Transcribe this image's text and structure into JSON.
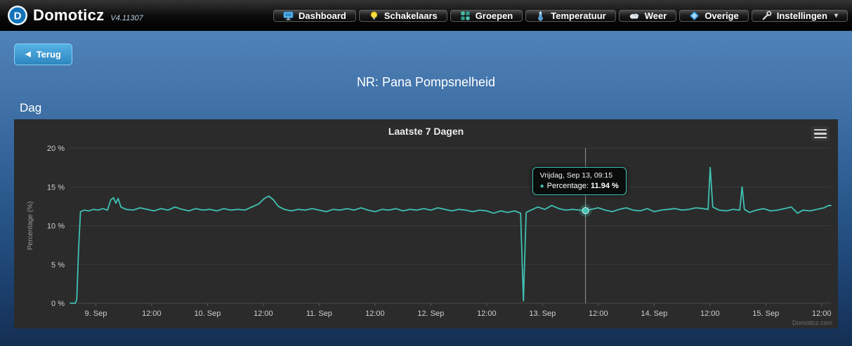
{
  "navbar": {
    "brand": {
      "name": "Domoticz",
      "version": "V4.11307"
    },
    "items": [
      {
        "label": "Dashboard",
        "icon": "dashboard-icon"
      },
      {
        "label": "Schakelaars",
        "icon": "bulb-icon"
      },
      {
        "label": "Groepen",
        "icon": "groups-icon"
      },
      {
        "label": "Temperatuur",
        "icon": "thermometer-icon"
      },
      {
        "label": "Weer",
        "icon": "cloud-icon"
      },
      {
        "label": "Overige",
        "icon": "gem-icon"
      },
      {
        "label": "Instellingen",
        "icon": "wrench-icon",
        "has_dropdown": true
      }
    ]
  },
  "page": {
    "back_button": "Terug",
    "title": "NR: Pana Pompsnelheid",
    "section_label": "Dag"
  },
  "chart_data": {
    "type": "line",
    "title": "Laatste 7 Dagen",
    "ylabel": "Percentage (%)",
    "ylim": [
      0,
      20
    ],
    "xlim": [
      18.5,
      182
    ],
    "grid": "horizontal-only",
    "legend": "none",
    "background": "#2b2b2b",
    "yticks": [
      {
        "v": 0,
        "label": "0 %"
      },
      {
        "v": 5,
        "label": "5 %"
      },
      {
        "v": 10,
        "label": "10 %"
      },
      {
        "v": 15,
        "label": "15 %"
      },
      {
        "v": 20,
        "label": "20 %"
      }
    ],
    "xticks": [
      {
        "t": 24,
        "label": "9. Sep"
      },
      {
        "t": 36,
        "label": "12:00"
      },
      {
        "t": 48,
        "label": "10. Sep"
      },
      {
        "t": 60,
        "label": "12:00"
      },
      {
        "t": 72,
        "label": "11. Sep"
      },
      {
        "t": 84,
        "label": "12:00"
      },
      {
        "t": 96,
        "label": "12. Sep"
      },
      {
        "t": 108,
        "label": "12:00"
      },
      {
        "t": 120,
        "label": "13. Sep"
      },
      {
        "t": 132,
        "label": "12:00"
      },
      {
        "t": 144,
        "label": "14. Sep"
      },
      {
        "t": 156,
        "label": "12:00"
      },
      {
        "t": 168,
        "label": "15. Sep"
      },
      {
        "t": 180,
        "label": "12:00"
      }
    ],
    "series": [
      {
        "name": "Percentage",
        "color": "#3fc1b3",
        "points": [
          [
            18.5,
            0
          ],
          [
            19.6,
            0
          ],
          [
            19.9,
            0.5
          ],
          [
            20.3,
            7.0
          ],
          [
            20.7,
            11.8
          ],
          [
            21.5,
            12.0
          ],
          [
            22.5,
            11.9
          ],
          [
            23.5,
            12.1
          ],
          [
            24.5,
            12.0
          ],
          [
            25.5,
            12.2
          ],
          [
            26.5,
            12.0
          ],
          [
            27.2,
            13.3
          ],
          [
            27.8,
            13.6
          ],
          [
            28.3,
            12.9
          ],
          [
            28.8,
            13.5
          ],
          [
            29.4,
            12.4
          ],
          [
            30.5,
            12.1
          ],
          [
            32,
            12.0
          ],
          [
            33.5,
            12.3
          ],
          [
            35,
            12.1
          ],
          [
            36.5,
            11.9
          ],
          [
            38,
            12.2
          ],
          [
            39.5,
            12.0
          ],
          [
            41,
            12.4
          ],
          [
            42.5,
            12.1
          ],
          [
            44,
            11.9
          ],
          [
            45.5,
            12.2
          ],
          [
            47,
            12.0
          ],
          [
            48.5,
            12.1
          ],
          [
            50,
            11.9
          ],
          [
            51.5,
            12.2
          ],
          [
            53,
            12.0
          ],
          [
            54.5,
            12.1
          ],
          [
            56,
            12.0
          ],
          [
            57.5,
            12.4
          ],
          [
            59,
            12.8
          ],
          [
            60.2,
            13.5
          ],
          [
            61.2,
            13.8
          ],
          [
            62.2,
            13.3
          ],
          [
            63.2,
            12.5
          ],
          [
            64.5,
            12.1
          ],
          [
            66,
            11.9
          ],
          [
            67.5,
            12.1
          ],
          [
            69,
            12.0
          ],
          [
            70.5,
            12.2
          ],
          [
            72,
            12.0
          ],
          [
            73.5,
            11.8
          ],
          [
            75,
            12.1
          ],
          [
            76.5,
            12.0
          ],
          [
            78,
            12.2
          ],
          [
            79.5,
            12.0
          ],
          [
            81,
            12.3
          ],
          [
            82.5,
            12.0
          ],
          [
            84,
            11.8
          ],
          [
            85.5,
            12.1
          ],
          [
            87,
            12.0
          ],
          [
            88.5,
            12.2
          ],
          [
            90,
            11.9
          ],
          [
            91.5,
            12.1
          ],
          [
            93,
            12.0
          ],
          [
            94.5,
            12.2
          ],
          [
            96,
            12.0
          ],
          [
            97.5,
            12.3
          ],
          [
            99,
            12.1
          ],
          [
            100.5,
            11.9
          ],
          [
            102,
            12.1
          ],
          [
            103.5,
            12.0
          ],
          [
            105,
            11.8
          ],
          [
            106.5,
            12.0
          ],
          [
            108,
            11.9
          ],
          [
            109.5,
            11.6
          ],
          [
            111,
            11.9
          ],
          [
            112.5,
            11.7
          ],
          [
            114,
            11.9
          ],
          [
            115.3,
            11.6
          ],
          [
            115.9,
            0.3
          ],
          [
            116.5,
            11.7
          ],
          [
            117.5,
            12.0
          ],
          [
            119,
            12.4
          ],
          [
            120.5,
            12.1
          ],
          [
            122,
            12.6
          ],
          [
            123.5,
            12.2
          ],
          [
            125,
            12.0
          ],
          [
            126.5,
            12.1
          ],
          [
            128,
            12.0
          ],
          [
            129.25,
            11.94
          ],
          [
            130.5,
            12.1
          ],
          [
            132,
            12.3
          ],
          [
            133.5,
            12.0
          ],
          [
            135,
            11.8
          ],
          [
            136.5,
            12.1
          ],
          [
            138,
            12.3
          ],
          [
            139.5,
            12.0
          ],
          [
            141,
            11.9
          ],
          [
            142.5,
            12.2
          ],
          [
            144,
            11.8
          ],
          [
            145.5,
            12.0
          ],
          [
            147,
            12.1
          ],
          [
            148.5,
            12.2
          ],
          [
            150,
            12.0
          ],
          [
            151.5,
            12.1
          ],
          [
            153,
            12.3
          ],
          [
            154.5,
            12.2
          ],
          [
            155.6,
            12.1
          ],
          [
            156.05,
            17.5
          ],
          [
            156.6,
            12.4
          ],
          [
            158,
            12.0
          ],
          [
            159.5,
            11.9
          ],
          [
            161,
            12.1
          ],
          [
            162.4,
            12.0
          ],
          [
            162.9,
            15.0
          ],
          [
            163.4,
            12.1
          ],
          [
            164.5,
            11.7
          ],
          [
            166,
            12.0
          ],
          [
            167.5,
            12.2
          ],
          [
            169,
            11.9
          ],
          [
            170.5,
            12.0
          ],
          [
            172,
            12.2
          ],
          [
            173.5,
            12.4
          ],
          [
            174.8,
            11.6
          ],
          [
            176,
            12.0
          ],
          [
            177.5,
            11.9
          ],
          [
            179,
            12.1
          ],
          [
            180.5,
            12.3
          ],
          [
            181.5,
            12.6
          ],
          [
            182,
            12.6
          ]
        ]
      }
    ],
    "tooltip": {
      "t": 129.25,
      "value": 11.94,
      "title": "Vrijdag, Sep 13, 09:15",
      "series_label": "Percentage:",
      "value_display": "11.94 %"
    },
    "credits": "Domoticz.com"
  }
}
